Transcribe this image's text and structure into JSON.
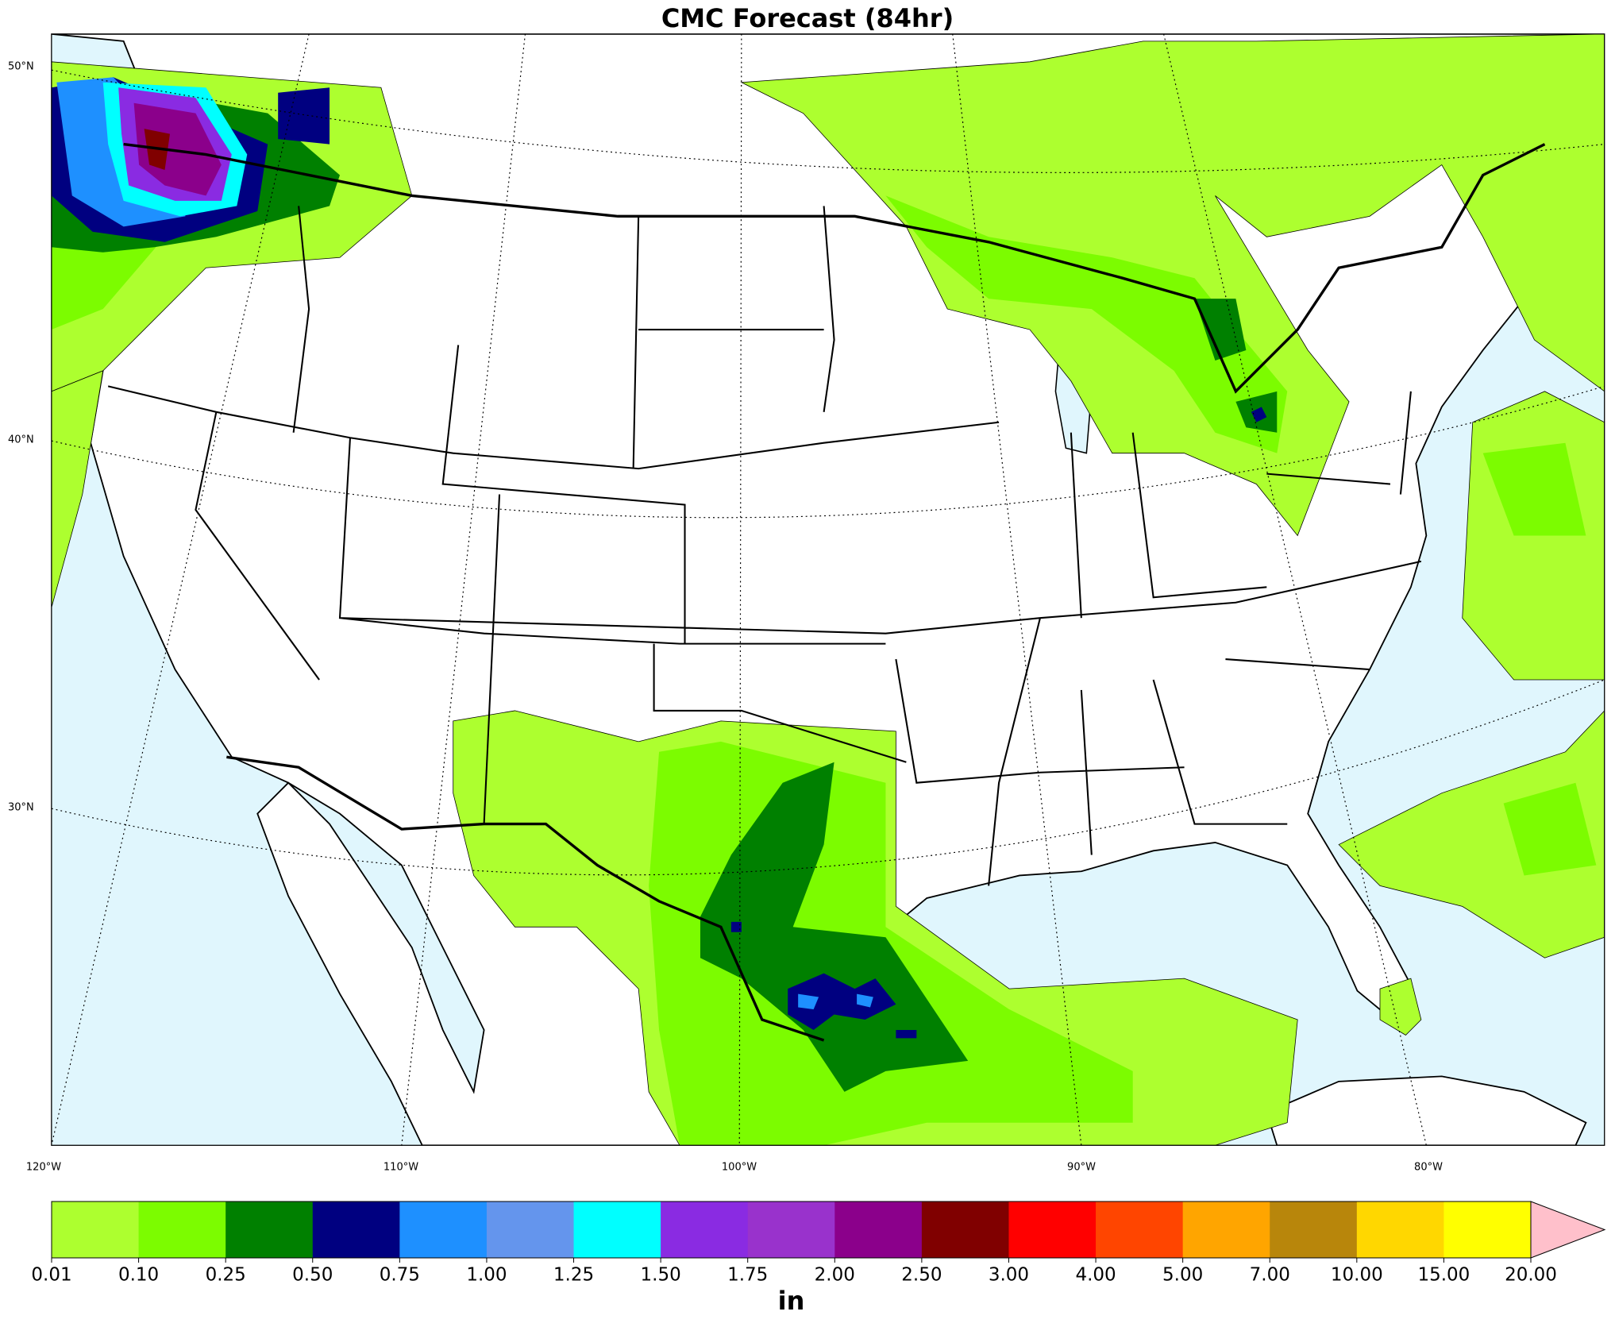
{
  "chart_data": {
    "type": "map",
    "title": "CMC Forecast (84hr)",
    "lat_labels": [
      "50°N",
      "40°N",
      "30°N"
    ],
    "lon_labels": [
      "120°W",
      "110°W",
      "100°W",
      "90°W",
      "80°W"
    ],
    "colorbar": {
      "label": "in",
      "ticks": [
        0.01,
        {
          "value": 0.1,
          "label": "0.10"
        },
        0.25,
        {
          "value": 0.5,
          "label": "0.50"
        },
        0.75,
        {
          "value": 1,
          "label": "1.00"
        },
        1.25,
        {
          "value": 1.5,
          "label": "1.50"
        },
        1.75,
        {
          "value": 2,
          "label": "2.00"
        },
        {
          "value": 2.5,
          "label": "2.50"
        },
        {
          "value": 3,
          "label": "3.00"
        },
        {
          "value": 4,
          "label": "4.00"
        },
        {
          "value": 5,
          "label": "5.00"
        },
        {
          "value": 7,
          "label": "7.00"
        },
        {
          "value": 10,
          "label": "10.00"
        },
        {
          "value": 15,
          "label": "15.00"
        },
        {
          "value": 20,
          "label": "20.00"
        }
      ],
      "colors": [
        "#adff2f",
        "#7cfc00",
        "#008000",
        "#000080",
        "#1e90ff",
        "#6495ed",
        "#00ffff",
        "#8a2be2",
        "#9932cc",
        "#8b008b",
        "#800000",
        "#ff0000",
        "#ff4500",
        "#ffa500",
        "#b8860b",
        "#ffd700",
        "#ffff00"
      ],
      "extend_color": "#ffc0cb"
    }
  }
}
